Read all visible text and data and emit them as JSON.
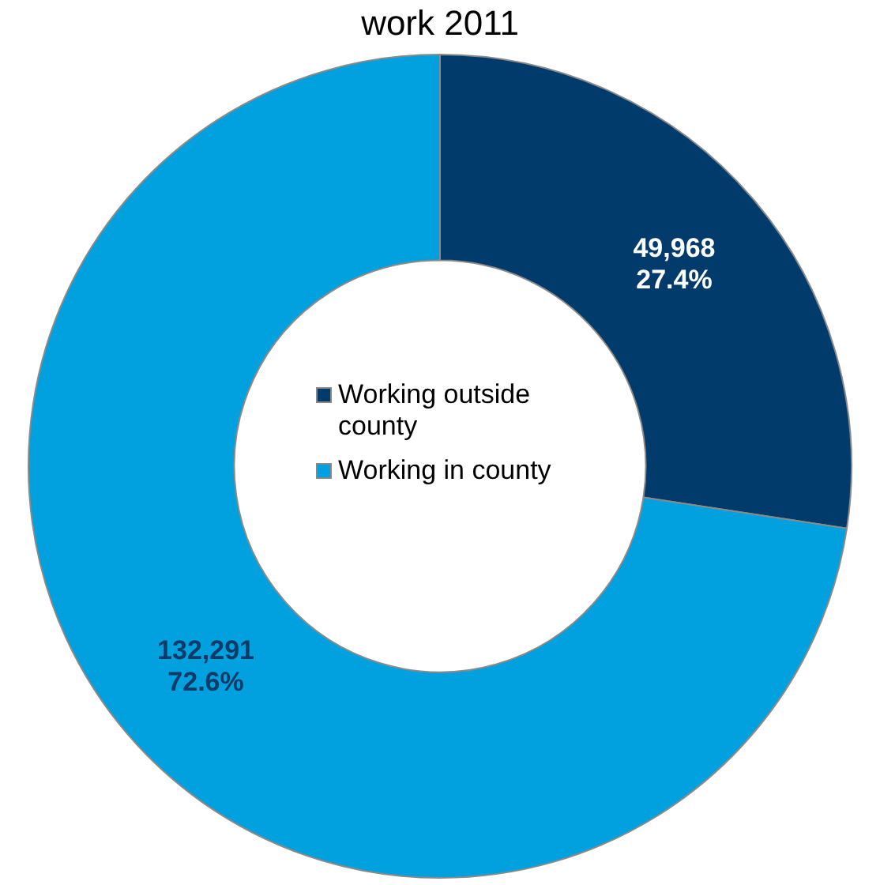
{
  "chart_data": {
    "type": "donut",
    "title": "work 2011",
    "categories": [
      "Working outside county",
      "Working in county"
    ],
    "values": [
      49968,
      132291
    ],
    "colors": [
      "#003b6b",
      "#00a1de"
    ],
    "value_labels": [
      "49,968\n27.4%",
      "132,291\n72.6%"
    ],
    "legend": "center"
  }
}
